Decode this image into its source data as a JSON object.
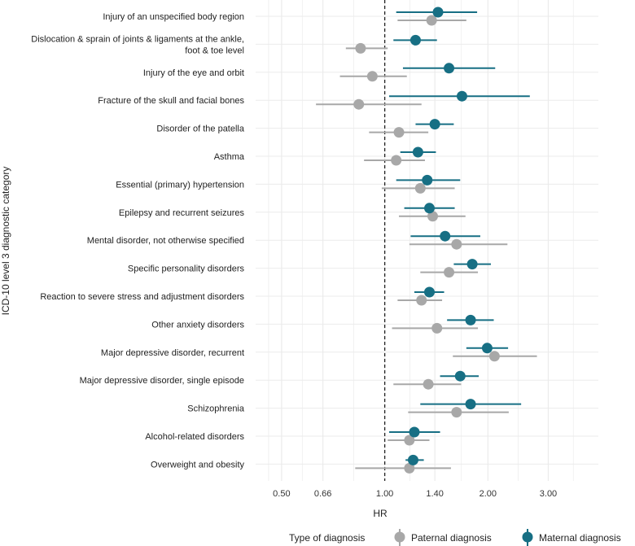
{
  "chart_data": {
    "type": "forest",
    "xscale": "log",
    "xlabel": "HR",
    "ylabel": "ICD-10 level 3 diagnostic category",
    "xlim": [
      0.42,
      4.2
    ],
    "xticks": [
      0.5,
      0.66,
      1.0,
      1.4,
      2.0,
      3.0
    ],
    "xtick_labels": [
      "0.50",
      "0.66",
      "1.00",
      "1.40",
      "2.00",
      "3.00"
    ],
    "reference_line": 1.0,
    "legend": {
      "title": "Type of diagnosis",
      "placement": "bottom",
      "entries": [
        "Paternal diagnosis",
        "Maternal diagnosis"
      ]
    },
    "colors": {
      "paternal": "#a8a8a8",
      "maternal": "#176f84",
      "grid": "#ebebeb",
      "reference": "#222222"
    },
    "categories": [
      [
        "Injury of an unspecified body region"
      ],
      [
        "Dislocation & sprain of joints & ligaments at the ankle,",
        "foot & toe level"
      ],
      [
        "Injury of the eye and orbit"
      ],
      [
        "Fracture of the skull and facial bones"
      ],
      [
        "Disorder of the patella"
      ],
      [
        "Asthma"
      ],
      [
        "Essential (primary) hypertension"
      ],
      [
        "Epilepsy and recurrent seizures"
      ],
      [
        "Mental disorder, not otherwise specified"
      ],
      [
        "Specific personality disorders"
      ],
      [
        "Reaction to severe stress and adjustment disorders"
      ],
      [
        "Other anxiety disorders"
      ],
      [
        "Major depressive disorder, recurrent"
      ],
      [
        "Major depressive disorder, single episode"
      ],
      [
        "Schizophrenia"
      ],
      [
        "Alcohol-related disorders"
      ],
      [
        "Overweight and obesity"
      ]
    ],
    "series": [
      {
        "name": "Paternal diagnosis",
        "hr": [
          1.37,
          0.85,
          0.92,
          0.84,
          1.1,
          1.08,
          1.27,
          1.38,
          1.62,
          1.54,
          1.28,
          1.42,
          2.09,
          1.34,
          1.62,
          1.18,
          1.18
        ],
        "lower": [
          1.09,
          0.77,
          0.74,
          0.63,
          0.9,
          0.87,
          0.98,
          1.1,
          1.18,
          1.27,
          1.09,
          1.05,
          1.58,
          1.06,
          1.17,
          1.02,
          0.82
        ],
        "upper": [
          1.73,
          1.02,
          1.16,
          1.28,
          1.34,
          1.31,
          1.6,
          1.72,
          2.28,
          1.87,
          1.47,
          1.87,
          2.78,
          1.67,
          2.3,
          1.35,
          1.56
        ]
      },
      {
        "name": "Maternal diagnosis",
        "hr": [
          1.43,
          1.23,
          1.54,
          1.68,
          1.4,
          1.25,
          1.33,
          1.35,
          1.5,
          1.8,
          1.35,
          1.78,
          1.99,
          1.66,
          1.78,
          1.22,
          1.21
        ],
        "lower": [
          1.08,
          1.06,
          1.13,
          1.03,
          1.23,
          1.11,
          1.08,
          1.14,
          1.19,
          1.59,
          1.22,
          1.52,
          1.73,
          1.45,
          1.27,
          1.03,
          1.15
        ],
        "upper": [
          1.86,
          1.42,
          2.1,
          2.65,
          1.59,
          1.41,
          1.66,
          1.6,
          1.9,
          2.04,
          1.49,
          2.08,
          2.29,
          1.88,
          2.5,
          1.45,
          1.3
        ]
      }
    ]
  }
}
